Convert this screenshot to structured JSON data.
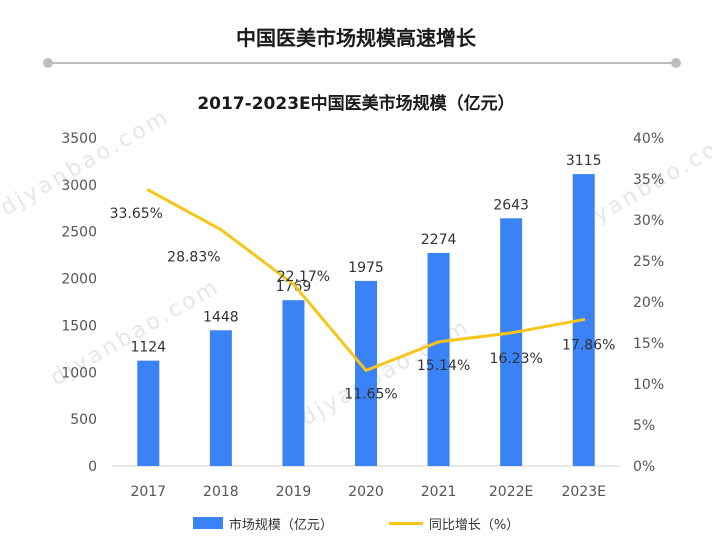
{
  "header": {
    "title": "中国医美市场规模高速增长"
  },
  "watermarks": [
    "djyanbao.com",
    "djyanbao.com",
    "djyanbao.com",
    "djyanbao.com"
  ],
  "colors": {
    "bar": "#3B82F6",
    "line": "#F5C518",
    "axis": "#555555",
    "divider": "#BDBDBD"
  },
  "chart_data": {
    "type": "bar+line",
    "title": "2017-2023E中国医美市场规模（亿元）",
    "categories": [
      "2017",
      "2018",
      "2019",
      "2020",
      "2021",
      "2022E",
      "2023E"
    ],
    "series": [
      {
        "name": "市场规模（亿元）",
        "type": "bar",
        "axis": "left",
        "values": [
          1124,
          1448,
          1769,
          1975,
          2274,
          2643,
          3115
        ],
        "labels": [
          "1124",
          "1448",
          "1769",
          "1975",
          "2274",
          "2643",
          "3115"
        ]
      },
      {
        "name": "同比增长（%）",
        "type": "line",
        "axis": "right",
        "values": [
          33.65,
          28.83,
          22.17,
          11.65,
          15.14,
          16.23,
          17.86
        ],
        "labels": [
          "33.65%",
          "28.83%",
          "22.17%",
          "11.65%",
          "15.14%",
          "16.23%",
          "17.86%"
        ]
      }
    ],
    "y_left": {
      "min": 0,
      "max": 3500,
      "ticks": [
        "0",
        "500",
        "1000",
        "1500",
        "2000",
        "2500",
        "3000",
        "3500"
      ]
    },
    "y_right": {
      "min": 0,
      "max": 40,
      "ticks": [
        "0%",
        "5%",
        "10%",
        "15%",
        "20%",
        "25%",
        "30%",
        "35%",
        "40%"
      ]
    },
    "grid": false,
    "legend_position": "bottom"
  }
}
